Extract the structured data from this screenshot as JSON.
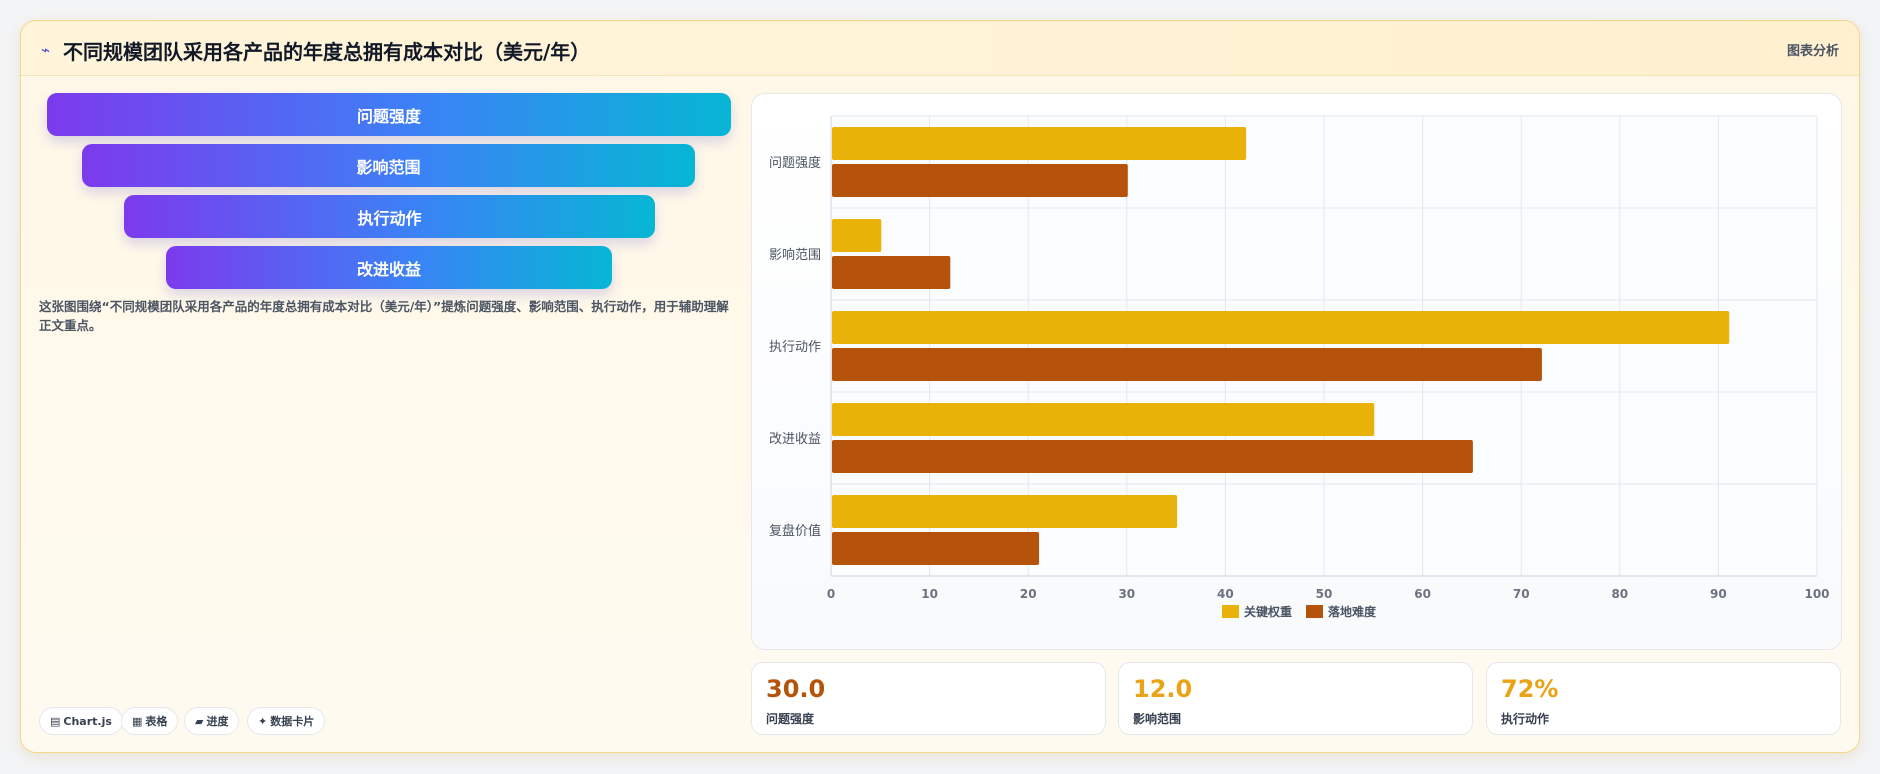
{
  "header": {
    "icon": "chart-trend-icon",
    "title": "不同规模团队采用各产品的年度总拥有成本对比（美元/年）",
    "action_label": "图表分析"
  },
  "funnel": {
    "steps": [
      "问题强度",
      "影响范围",
      "执行动作",
      "改进收益"
    ]
  },
  "description": "这张图围绕“不同规模团队采用各产品的年度总拥有成本对比（美元/年）”提炼问题强度、影响范围、执行动作，用于辅助理解正文重点。",
  "chips": [
    {
      "icon": "chart-icon",
      "label": "Chart.js"
    },
    {
      "icon": "table-icon",
      "label": "表格"
    },
    {
      "icon": "progress-icon",
      "label": "进度"
    },
    {
      "icon": "sparkle-icon",
      "label": "数据卡片"
    }
  ],
  "chart_data": {
    "type": "bar",
    "orientation": "horizontal",
    "categories": [
      "问题强度",
      "影响范围",
      "执行动作",
      "改进收益",
      "复盘价值"
    ],
    "series": [
      {
        "name": "关键权重",
        "values": [
          42,
          5,
          91,
          55,
          35
        ],
        "color": "#e8b208"
      },
      {
        "name": "落地难度",
        "values": [
          30,
          12,
          72,
          65,
          21
        ],
        "color": "#b5530a"
      }
    ],
    "xlim": [
      0,
      100
    ],
    "xticks": [
      0,
      10,
      20,
      30,
      40,
      50,
      60,
      70,
      80,
      90,
      100
    ],
    "grid": true,
    "legend": "bottom"
  },
  "stats": [
    {
      "value": "30.0",
      "label": "问题强度",
      "color": "#b45309"
    },
    {
      "value": "12.0",
      "label": "影响范围",
      "color": "#e8a317"
    },
    {
      "value": "72%",
      "label": "执行动作",
      "color": "#e8a317"
    }
  ]
}
